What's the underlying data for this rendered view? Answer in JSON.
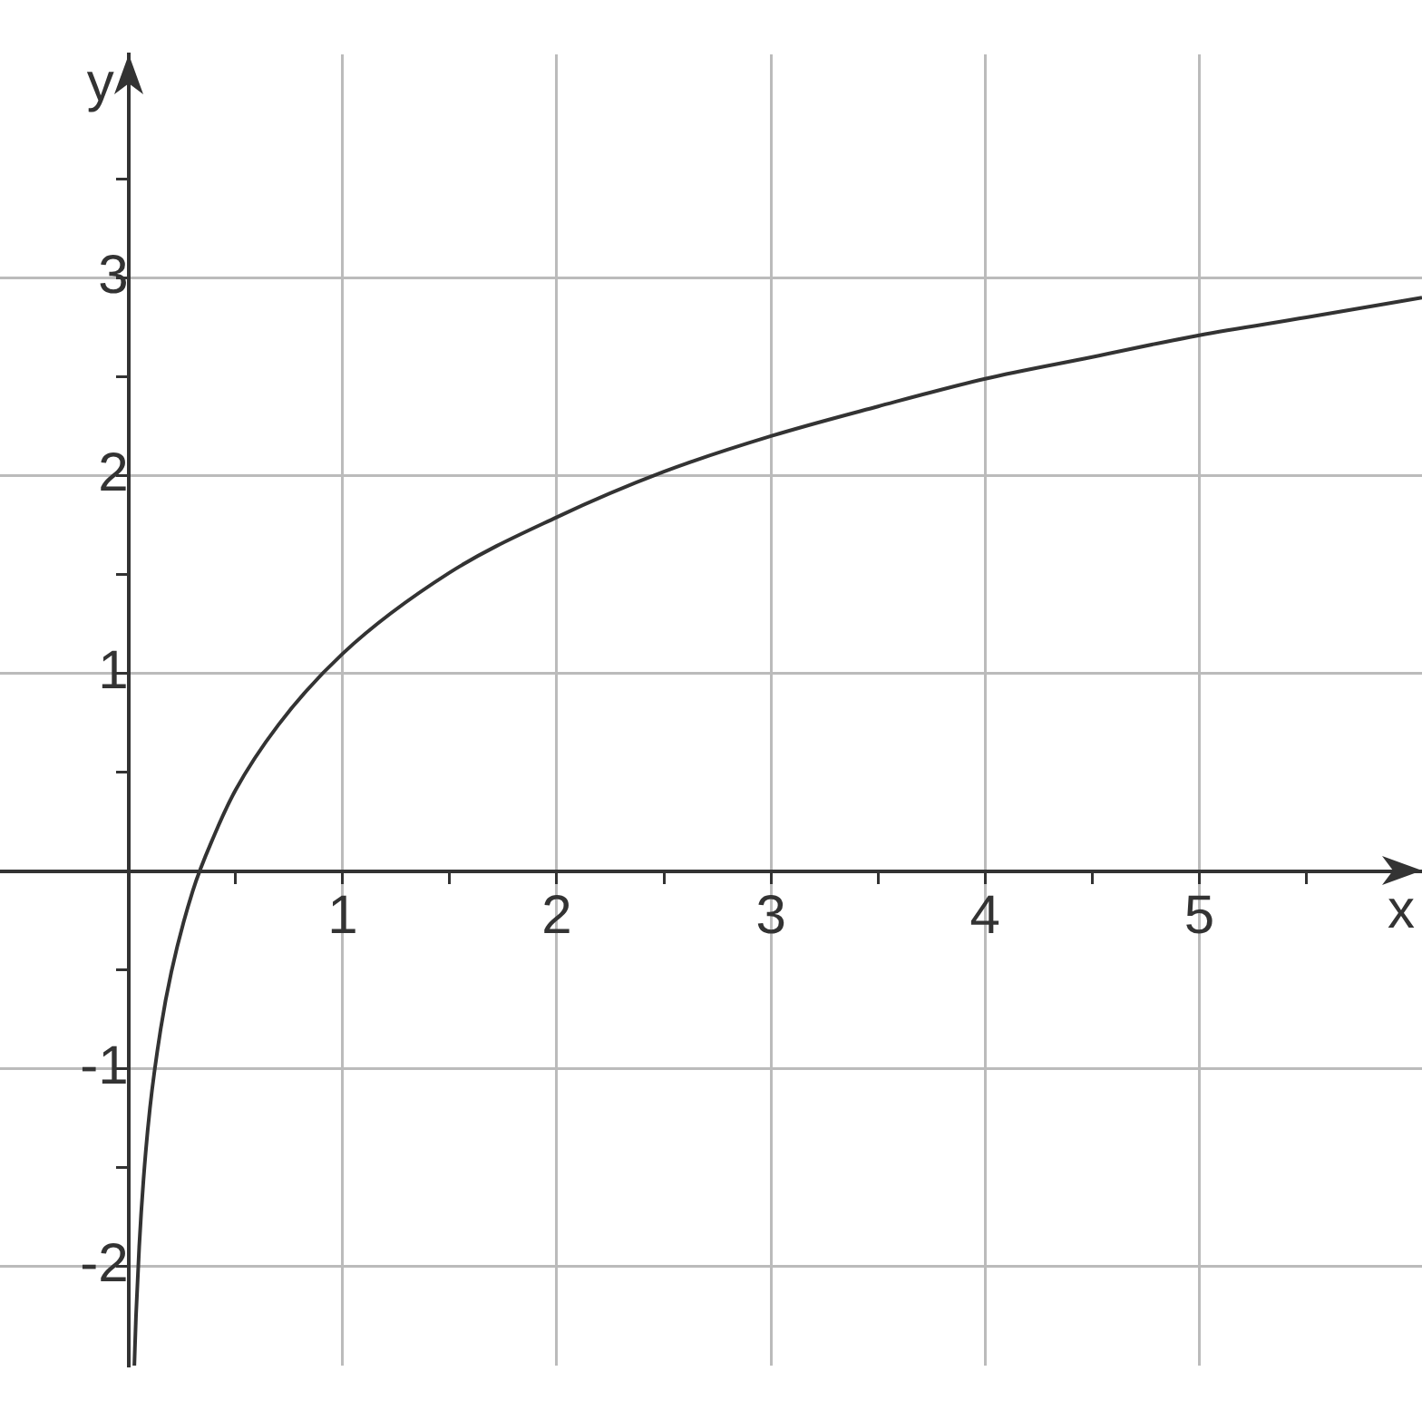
{
  "chart_data": {
    "type": "line",
    "xlabel": "x",
    "ylabel": "y",
    "x": [
      0.0273,
      0.035,
      0.05,
      0.07,
      0.1,
      0.15,
      0.2,
      0.3,
      0.4,
      0.5,
      0.7,
      1,
      1.5,
      2,
      2.5,
      3,
      3.5,
      4,
      4.5,
      5,
      5.5,
      6.04
    ],
    "values": [
      -2.5,
      -2.25,
      -1.9,
      -1.56,
      -1.2,
      -0.8,
      -0.51,
      -0.1,
      0.18,
      0.41,
      0.74,
      1.1,
      1.51,
      1.79,
      2.02,
      2.2,
      2.35,
      2.49,
      2.6,
      2.71,
      2.8,
      2.9
    ],
    "color": "#333333",
    "xlim": [
      -0.6,
      6.04
    ],
    "ylim": [
      -2.5,
      4.13
    ],
    "xticks": [
      {
        "value": 0.5,
        "label": null
      },
      1,
      {
        "value": 1.5,
        "label": null
      },
      2,
      {
        "value": 2.5,
        "label": null
      },
      3,
      {
        "value": 3.5,
        "label": null
      },
      4,
      {
        "value": 4.5,
        "label": null
      },
      5,
      {
        "value": 5.5,
        "label": null
      }
    ],
    "yticks": [
      -2,
      {
        "value": -1.5,
        "label": null
      },
      -1,
      {
        "value": -0.5,
        "label": null
      },
      {
        "value": 0.5,
        "label": null
      },
      1,
      {
        "value": 1.5,
        "label": null
      },
      2,
      {
        "value": 2.5,
        "label": null
      },
      3,
      {
        "value": 3.5,
        "label": null
      }
    ],
    "grid": true,
    "legend": false
  }
}
